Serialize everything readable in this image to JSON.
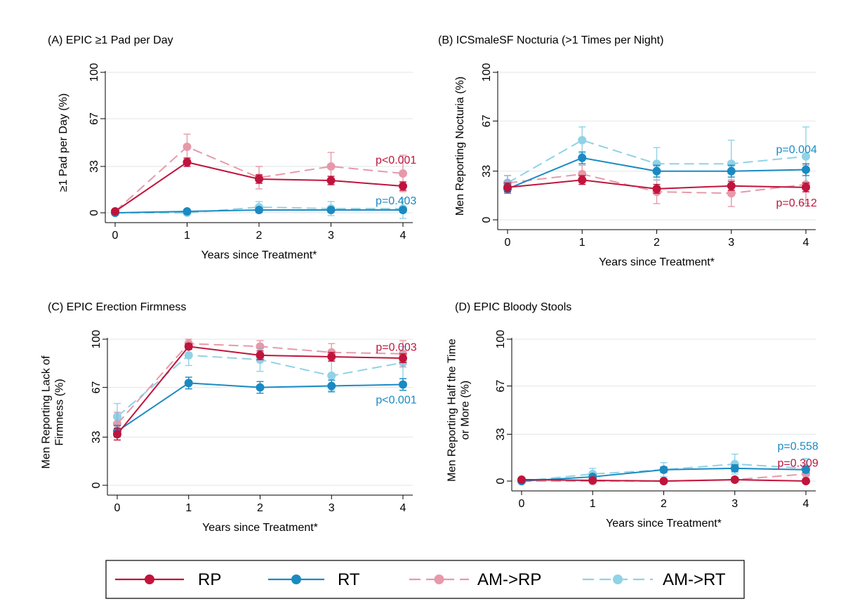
{
  "chart_data": [
    {
      "type": "line",
      "title": "(A) EPIC ≥1 Pad per Day",
      "xlabel": "Years since Treatment*",
      "ylabel": [
        "≥1 Pad per Day (%)"
      ],
      "x": [
        0,
        1,
        2,
        3,
        4
      ],
      "xticks": [
        "0",
        "1",
        "2",
        "3",
        "4"
      ],
      "yticks": [
        "0",
        "33",
        "67",
        "100"
      ],
      "ylim": [
        0,
        100
      ],
      "grid": true,
      "series": [
        {
          "name": "RP",
          "values": [
            1,
            36,
            24,
            23,
            19
          ],
          "err": [
            1,
            3,
            3,
            3,
            3
          ]
        },
        {
          "name": "RT",
          "values": [
            0,
            1,
            2,
            2,
            2
          ],
          "err": [
            0.5,
            1,
            1,
            1,
            1
          ]
        },
        {
          "name": "AM->RP",
          "values": [
            1,
            47,
            25,
            33,
            28
          ],
          "err": [
            1,
            9,
            8,
            10,
            13
          ]
        },
        {
          "name": "AM->RT",
          "values": [
            0,
            0,
            4,
            3,
            3
          ],
          "err": [
            0.5,
            1,
            4,
            5,
            7
          ]
        }
      ],
      "annotations": [
        {
          "text": "p<0.001",
          "series": "RP",
          "x": 3.62,
          "y": 38
        },
        {
          "text": "p=0.403",
          "series": "RT",
          "x": 3.62,
          "y": 9
        }
      ]
    },
    {
      "type": "line",
      "title": "(B) ICSmaleSF Nocturia (>1 Times per Night)",
      "xlabel": "Years since Treatment*",
      "ylabel": [
        "Men Reporting Nocturia (%)"
      ],
      "x": [
        0,
        1,
        2,
        3,
        4
      ],
      "xticks": [
        "0",
        "1",
        "2",
        "3",
        "4"
      ],
      "yticks": [
        "0",
        "33",
        "67",
        "100"
      ],
      "ylim": [
        0,
        100
      ],
      "grid": true,
      "series": [
        {
          "name": "RP",
          "values": [
            22,
            27,
            21,
            23,
            22
          ],
          "err": [
            3,
            3,
            3,
            3,
            3
          ]
        },
        {
          "name": "RT",
          "values": [
            21,
            42,
            33,
            33,
            34
          ],
          "err": [
            3,
            4,
            4,
            4,
            4
          ]
        },
        {
          "name": "AM->RP",
          "values": [
            25,
            31,
            19,
            18,
            24
          ],
          "err": [
            5,
            6,
            8,
            9,
            13
          ]
        },
        {
          "name": "AM->RT",
          "values": [
            25,
            54,
            38,
            38,
            43
          ],
          "err": [
            5,
            9,
            11,
            16,
            20
          ]
        }
      ],
      "annotations": [
        {
          "text": "p=0.004",
          "series": "RT",
          "x": 3.6,
          "y": 48
        },
        {
          "text": "p=0.612",
          "series": "RP",
          "x": 3.6,
          "y": 12
        }
      ]
    },
    {
      "type": "line",
      "title": "(C) EPIC Erection Firmness",
      "xlabel": "Years since Treatment*",
      "ylabel": [
        "Men Reporting Lack of",
        "Firmness (%)"
      ],
      "x": [
        0,
        1,
        2,
        3,
        4
      ],
      "xticks": [
        "0",
        "1",
        "2",
        "3",
        "4"
      ],
      "yticks": [
        "0",
        "33",
        "67",
        "100"
      ],
      "ylim": [
        0,
        100
      ],
      "grid": true,
      "series": [
        {
          "name": "RP",
          "values": [
            35,
            95,
            89,
            88,
            87
          ],
          "err": [
            4,
            2,
            3,
            3,
            3
          ]
        },
        {
          "name": "RT",
          "values": [
            37,
            70,
            67,
            68,
            69
          ],
          "err": [
            4,
            4,
            4,
            4,
            4
          ]
        },
        {
          "name": "AM->RP",
          "values": [
            42,
            97,
            95,
            91,
            90
          ],
          "err": [
            8,
            3,
            4,
            6,
            9
          ]
        },
        {
          "name": "AM->RT",
          "values": [
            47,
            89,
            86,
            75,
            84
          ],
          "err": [
            9,
            7,
            8,
            10,
            11
          ]
        }
      ],
      "annotations": [
        {
          "text": "p=0.003",
          "series": "RP",
          "x": 3.62,
          "y": 95
        },
        {
          "text": "p<0.001",
          "series": "RT",
          "x": 3.62,
          "y": 59
        }
      ]
    },
    {
      "type": "line",
      "title": "(D) EPIC Bloody Stools",
      "xlabel": "Years since Treatment*",
      "ylabel": [
        "Men Reporting Half the Time",
        "or More (%)"
      ],
      "x": [
        0,
        1,
        2,
        3,
        4
      ],
      "xticks": [
        "0",
        "1",
        "2",
        "3",
        "4"
      ],
      "yticks": [
        "0",
        "33",
        "67",
        "100"
      ],
      "ylim": [
        0,
        100
      ],
      "grid": true,
      "series": [
        {
          "name": "RP",
          "values": [
            1,
            0.5,
            0,
            1,
            0
          ],
          "err": [
            0.5,
            0.5,
            0.5,
            0.5,
            0.5
          ]
        },
        {
          "name": "RT",
          "values": [
            0,
            3,
            8,
            9,
            8
          ],
          "err": [
            0.5,
            1.5,
            2,
            2.5,
            2
          ]
        },
        {
          "name": "AM->RP",
          "values": [
            0,
            0,
            0,
            1,
            5
          ],
          "err": [
            0.5,
            0.5,
            0.5,
            1,
            4
          ]
        },
        {
          "name": "AM->RT",
          "values": [
            0,
            5,
            8,
            12,
            9
          ],
          "err": [
            1,
            4,
            5,
            7,
            7
          ]
        }
      ],
      "annotations": [
        {
          "text": "p=0.558",
          "series": "RT",
          "x": 3.6,
          "y": 25
        },
        {
          "text": "p=0.309",
          "series": "RP",
          "x": 3.6,
          "y": 13
        }
      ]
    }
  ],
  "legend": {
    "placement": "bottom",
    "items": [
      {
        "label": "RP",
        "series": "RP"
      },
      {
        "label": "RT",
        "series": "RT"
      },
      {
        "label": "AM->RP",
        "series": "AM->RP"
      },
      {
        "label": "AM->RT",
        "series": "AM->RT"
      }
    ]
  },
  "series_styles": {
    "RP": {
      "color": "#c0143c",
      "dash": false,
      "opacity": 1.0
    },
    "RT": {
      "color": "#1b8ac2",
      "dash": false,
      "opacity": 1.0
    },
    "AM->RP": {
      "color": "#e0788e",
      "dash": true,
      "opacity": 0.75
    },
    "AM->RT": {
      "color": "#6cc3df",
      "dash": true,
      "opacity": 0.75
    }
  }
}
